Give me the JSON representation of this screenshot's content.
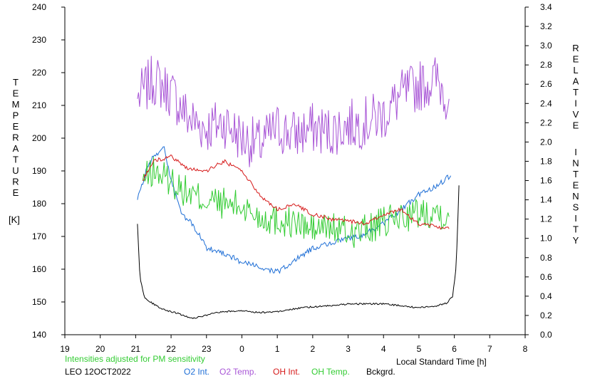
{
  "chart_data": {
    "type": "line",
    "left_axis_title": [
      "T",
      "E",
      "M",
      "P",
      "E",
      "R",
      "A",
      "T",
      "U",
      "R",
      "E"
    ],
    "left_axis_unit": "[K]",
    "right_axis_title_1": [
      "R",
      "E",
      "L",
      "A",
      "T",
      "I",
      "V",
      "E"
    ],
    "right_axis_title_2": [
      "I",
      "N",
      "T",
      "E",
      "N",
      "S",
      "I",
      "T",
      "Y"
    ],
    "xlabel": "Local Standard Time [h]",
    "note": "Intensities adjusted for PM sensitivity",
    "station": "LEO 12OCT2022",
    "x_range": [
      19,
      32
    ],
    "left_ylim": [
      140,
      240
    ],
    "right_ylim": [
      0.0,
      3.4
    ],
    "x_tick_labels": [
      "19",
      "20",
      "21",
      "22",
      "23",
      "0",
      "1",
      "2",
      "3",
      "4",
      "5",
      "6",
      "7",
      "8"
    ],
    "left_tick_labels": [
      "140",
      "150",
      "160",
      "170",
      "180",
      "190",
      "200",
      "210",
      "220",
      "230",
      "240"
    ],
    "right_tick_labels": [
      "0.0",
      "0.2",
      "0.4",
      "0.6",
      "0.8",
      "1.0",
      "1.2",
      "1.4",
      "1.6",
      "1.8",
      "2.0",
      "2.2",
      "2.4",
      "2.6",
      "2.8",
      "3.0",
      "3.2",
      "3.4"
    ],
    "legend": [
      {
        "label": "O2 Int.",
        "color": "#1f6fd6"
      },
      {
        "label": "O2 Temp.",
        "color": "#a855d6"
      },
      {
        "label": "OH Int.",
        "color": "#d61a1a"
      },
      {
        "label": "OH Temp.",
        "color": "#33cc33"
      },
      {
        "label": "Bckgrd.",
        "color": "#000000"
      }
    ],
    "series": [
      {
        "key": "o2_temp",
        "axis": "left",
        "noise": 8,
        "color": "#a855d6",
        "x": [
          21.05,
          21.5,
          22.0,
          22.5,
          23.0,
          23.5,
          24.0,
          24.5,
          25.0,
          25.5,
          26.0,
          26.5,
          27.0,
          27.5,
          28.0,
          28.5,
          29.0,
          29.5,
          29.85
        ],
        "y": [
          212,
          218,
          214,
          206,
          203,
          205,
          200,
          198,
          203,
          201,
          203,
          202,
          204,
          205,
          207,
          213,
          216,
          218,
          212
        ]
      },
      {
        "key": "oh_temp",
        "axis": "left",
        "noise": 5,
        "color": "#33cc33",
        "x": [
          21.2,
          21.5,
          22.0,
          22.5,
          23.0,
          23.5,
          24.0,
          24.5,
          25.0,
          25.5,
          26.0,
          26.5,
          27.0,
          27.5,
          28.0,
          28.5,
          29.0,
          29.5,
          29.85
        ],
        "y": [
          187,
          190,
          187,
          183,
          181,
          180,
          179,
          176,
          175,
          174,
          172,
          173,
          171,
          172,
          174,
          176,
          177,
          178,
          176
        ]
      },
      {
        "key": "o2_int",
        "axis": "right",
        "noise": 0.03,
        "color": "#1f6fd6",
        "x": [
          21.05,
          21.3,
          21.5,
          21.8,
          22.0,
          22.3,
          22.6,
          23.0,
          23.5,
          24.0,
          24.5,
          25.0,
          25.3,
          25.6,
          26.0,
          26.5,
          27.0,
          27.5,
          28.0,
          28.5,
          29.0,
          29.5,
          29.9
        ],
        "y": [
          1.4,
          1.7,
          1.85,
          1.95,
          1.6,
          1.25,
          1.15,
          0.9,
          0.85,
          0.75,
          0.7,
          0.65,
          0.72,
          0.8,
          0.9,
          0.95,
          1.0,
          1.05,
          1.15,
          1.3,
          1.45,
          1.55,
          1.65
        ]
      },
      {
        "key": "oh_int",
        "axis": "right",
        "noise": 0.02,
        "color": "#d61a1a",
        "x": [
          21.2,
          21.5,
          22.0,
          22.5,
          23.0,
          23.5,
          24.0,
          24.5,
          25.0,
          25.5,
          26.0,
          26.5,
          27.0,
          27.5,
          28.0,
          28.5,
          28.8,
          29.0,
          29.5,
          29.85
        ],
        "y": [
          1.6,
          1.8,
          1.85,
          1.72,
          1.7,
          1.8,
          1.7,
          1.45,
          1.3,
          1.35,
          1.25,
          1.2,
          1.18,
          1.15,
          1.25,
          1.3,
          1.2,
          1.15,
          1.12,
          1.1
        ]
      },
      {
        "key": "bckgrd",
        "axis": "right",
        "noise": 0.008,
        "color": "#000000",
        "x": [
          21.05,
          21.12,
          21.25,
          21.5,
          21.8,
          22.2,
          22.6,
          23.0,
          23.3,
          23.6,
          24.0,
          24.5,
          25.0,
          25.5,
          26.0,
          26.5,
          27.0,
          27.5,
          28.0,
          28.5,
          29.0,
          29.5,
          29.8,
          29.95,
          30.05,
          30.1,
          30.13
        ],
        "y": [
          1.15,
          0.6,
          0.38,
          0.32,
          0.26,
          0.22,
          0.17,
          0.2,
          0.23,
          0.24,
          0.25,
          0.23,
          0.24,
          0.27,
          0.29,
          0.3,
          0.32,
          0.32,
          0.32,
          0.3,
          0.28,
          0.3,
          0.33,
          0.4,
          0.7,
          1.2,
          1.55
        ]
      }
    ]
  }
}
